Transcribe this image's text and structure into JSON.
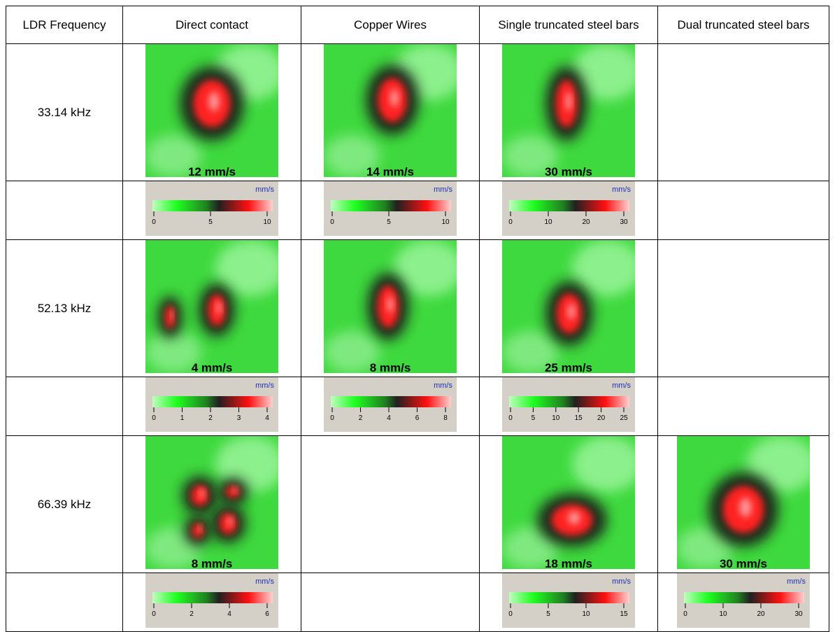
{
  "table": {
    "header": [
      "LDR Frequency",
      "Direct contact",
      "Copper Wires",
      "Single truncated steel bars",
      "Dual truncated steel bars"
    ],
    "rows": [
      {
        "frequency": "33.14 kHz",
        "cells": [
          {
            "velocity": "12 mm/s",
            "unit": "mm/s",
            "ticks": [
              0,
              5,
              10
            ]
          },
          {
            "velocity": "14 mm/s",
            "unit": "mm/s",
            "ticks": [
              0,
              5,
              10
            ]
          },
          {
            "velocity": "30 mm/s",
            "unit": "mm/s",
            "ticks": [
              0,
              10,
              20,
              30
            ]
          },
          null
        ]
      },
      {
        "frequency": "52.13 kHz",
        "cells": [
          {
            "velocity": "4 mm/s",
            "unit": "mm/s",
            "ticks": [
              0,
              1,
              2,
              3,
              4
            ]
          },
          {
            "velocity": "8 mm/s",
            "unit": "mm/s",
            "ticks": [
              0,
              2,
              4,
              6,
              8
            ]
          },
          {
            "velocity": "25 mm/s",
            "unit": "mm/s",
            "ticks": [
              0,
              5,
              10,
              15,
              20,
              25
            ]
          },
          null
        ]
      },
      {
        "frequency": "66.39 kHz",
        "cells": [
          {
            "velocity": "8 mm/s",
            "unit": "mm/s",
            "ticks": [
              0,
              2,
              4,
              6
            ]
          },
          null,
          {
            "velocity": "18 mm/s",
            "unit": "mm/s",
            "ticks": [
              0,
              5,
              10,
              15
            ]
          },
          {
            "velocity": "30 mm/s",
            "unit": "mm/s",
            "ticks": [
              0,
              10,
              20,
              30
            ]
          }
        ]
      }
    ]
  }
}
